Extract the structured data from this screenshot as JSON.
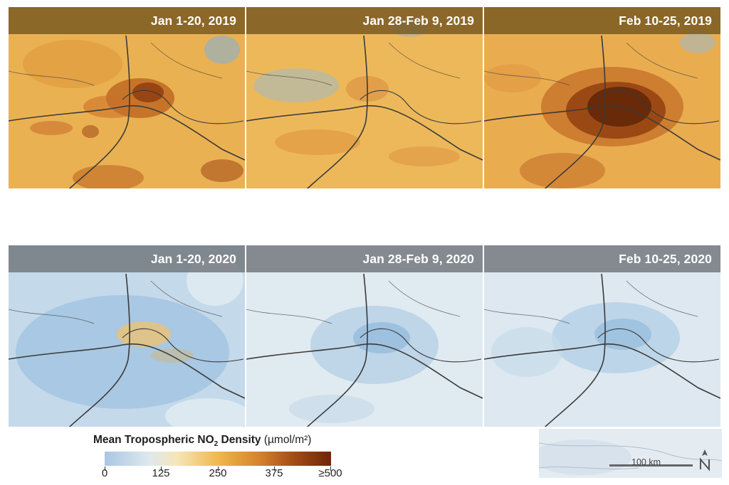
{
  "panels": [
    {
      "label": "Jan 1-20, 2019",
      "year": 2019
    },
    {
      "label": "Jan 28-Feb 9, 2019",
      "year": 2019
    },
    {
      "label": "Feb 10-25, 2019",
      "year": 2019
    },
    {
      "label": "Jan 1-20, 2020",
      "year": 2020
    },
    {
      "label": "Jan 28-Feb 9, 2020",
      "year": 2020
    },
    {
      "label": "Feb 10-25, 2020",
      "year": 2020
    }
  ],
  "legend": {
    "title_main": "Mean Tropospheric NO",
    "title_sub": "2",
    "title_rest": " Density ",
    "unit": "(µmol/m²)",
    "ticks": [
      "0",
      "125",
      "250",
      "375",
      "≥500"
    ]
  },
  "scale_bar": {
    "label": "100 km"
  },
  "colors": {
    "high_2019": "#7a3108",
    "mid_2019": "#e9ac4e",
    "low_2020": "#d9e6ef",
    "mid_2020": "#8fb5d8",
    "roads": "#3a3a3a"
  },
  "icons": {
    "north_arrow": "north-arrow-icon"
  }
}
